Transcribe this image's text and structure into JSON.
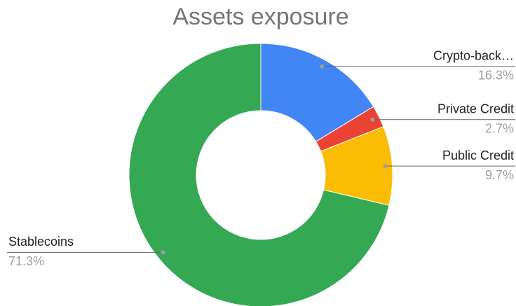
{
  "chart_data": {
    "type": "donut",
    "title": "Assets exposure",
    "categories": [
      "Crypto-back…",
      "Private Credit",
      "Public Credit",
      "Stablecoins"
    ],
    "values": [
      16.3,
      2.7,
      9.7,
      71.3
    ],
    "value_labels": [
      "16.3%",
      "2.7%",
      "9.7%",
      "71.3%"
    ],
    "colors": [
      "#4285f4",
      "#ea4335",
      "#fbbc04",
      "#34a853"
    ]
  }
}
